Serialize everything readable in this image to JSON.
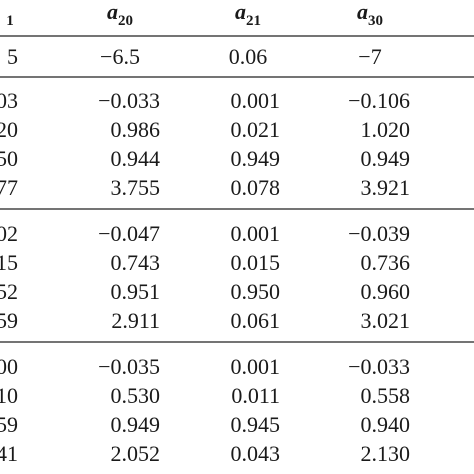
{
  "header": [
    {
      "subscript": "1"
    },
    {
      "symbol": "a",
      "subscript": "20"
    },
    {
      "symbol": "a",
      "subscript": "21"
    },
    {
      "symbol": "a",
      "subscript": "30"
    }
  ],
  "true_values": [
    "5",
    "−6.5",
    "0.06",
    "−7"
  ],
  "groups": [
    [
      [
        "03",
        "−0.033",
        "0.001",
        "−0.106"
      ],
      [
        "20",
        "0.986",
        "0.021",
        "1.020"
      ],
      [
        "50",
        "0.944",
        "0.949",
        "0.949"
      ],
      [
        "77",
        "3.755",
        "0.078",
        "3.921"
      ]
    ],
    [
      [
        "02",
        "−0.047",
        "0.001",
        "−0.039"
      ],
      [
        "15",
        "0.743",
        "0.015",
        "0.736"
      ],
      [
        "52",
        "0.951",
        "0.950",
        "0.960"
      ],
      [
        "59",
        "2.911",
        "0.061",
        "3.021"
      ]
    ],
    [
      [
        "00",
        "−0.035",
        "0.001",
        "−0.033"
      ],
      [
        "10",
        "0.530",
        "0.011",
        "0.558"
      ],
      [
        "59",
        "0.949",
        "0.945",
        "0.940"
      ],
      [
        "41",
        "2.052",
        "0.043",
        "2.130"
      ]
    ]
  ]
}
